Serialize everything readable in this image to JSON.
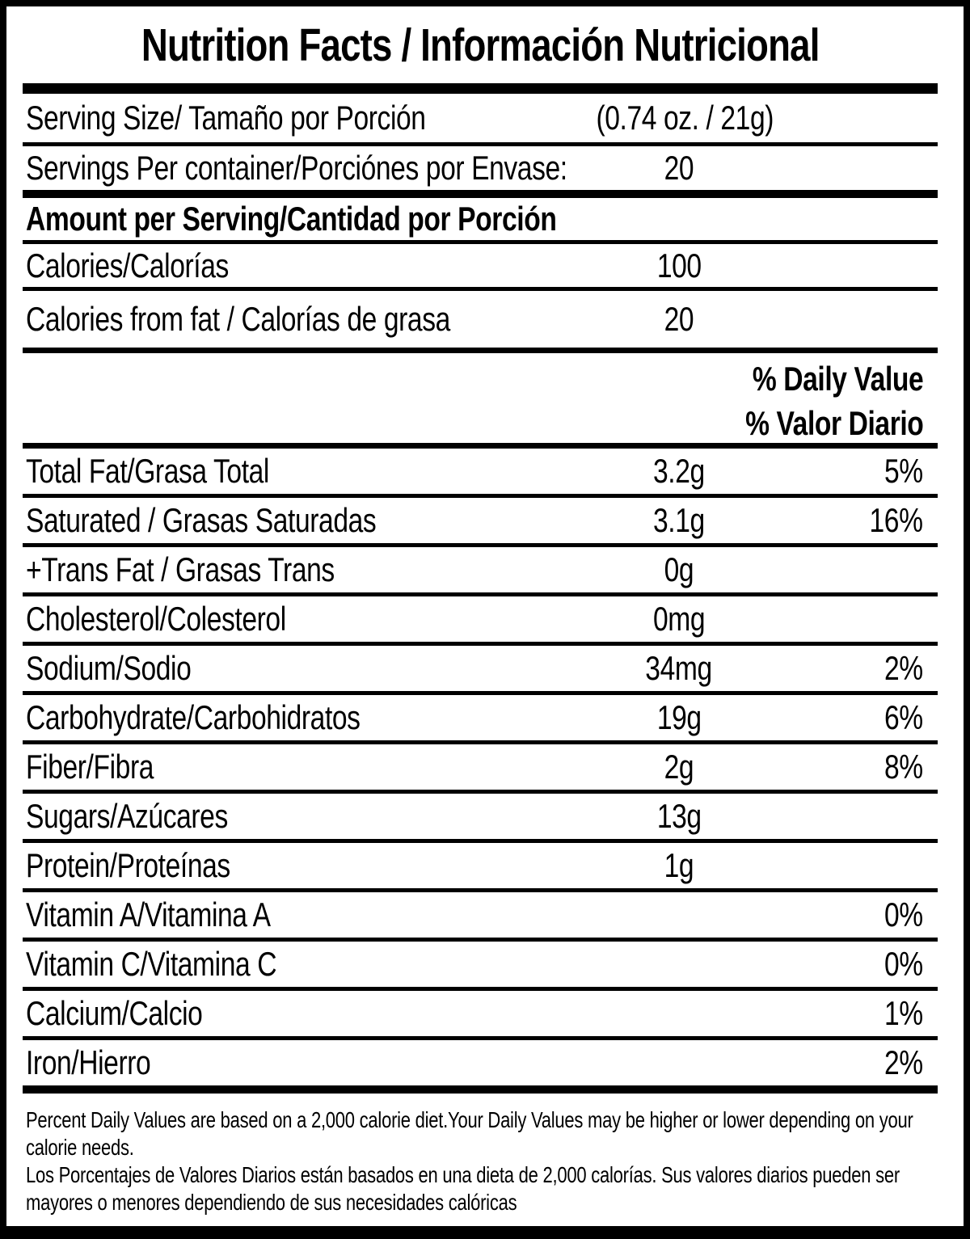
{
  "colors": {
    "foreground": "#000000",
    "background": "#ffffff"
  },
  "label": {
    "title": "Nutrition Facts / Información Nutricional",
    "serving_size": {
      "label": "Serving Size/ Tamaño por Porción",
      "value": "(0.74 oz. / 21g)"
    },
    "servings_per_container": {
      "label": "Servings Per container/Porciónes por Envase:",
      "value": "20"
    },
    "amount_per_serving": "Amount per Serving/Cantidad por Porción",
    "calories": {
      "label": "Calories/Calorías",
      "value": "100"
    },
    "calories_from_fat": {
      "label": "Calories from fat / Calorías de grasa",
      "value": "20"
    },
    "daily_value_header_en": "% Daily Value",
    "daily_value_header_es": "% Valor Diario",
    "nutrients": [
      {
        "label": "Total Fat/Grasa Total",
        "amount": "3.2g",
        "dv": "5%"
      },
      {
        "label": "Saturated / Grasas Saturadas",
        "amount": "3.1g",
        "dv": "16%"
      },
      {
        "label": "+Trans Fat / Grasas Trans",
        "amount": "0g",
        "dv": ""
      },
      {
        "label": "Cholesterol/Colesterol",
        "amount": "0mg",
        "dv": ""
      },
      {
        "label": "Sodium/Sodio",
        "amount": "34mg",
        "dv": "2%"
      },
      {
        "label": "Carbohydrate/Carbohidratos",
        "amount": "19g",
        "dv": "6%"
      },
      {
        "label": "Fiber/Fibra",
        "amount": "2g",
        "dv": "8%"
      },
      {
        "label": "Sugars/Azúcares",
        "amount": "13g",
        "dv": ""
      },
      {
        "label": "Protein/Proteínas",
        "amount": "1g",
        "dv": ""
      },
      {
        "label": "Vitamin A/Vitamina A",
        "amount": "",
        "dv": "0%"
      },
      {
        "label": "Vitamin C/Vitamina C",
        "amount": "",
        "dv": "0%"
      },
      {
        "label": "Calcium/Calcio",
        "amount": "",
        "dv": "1%"
      },
      {
        "label": "Iron/Hierro",
        "amount": "",
        "dv": "2%"
      }
    ],
    "footnote_en": "Percent Daily Values are based on a 2,000 calorie diet.Your Daily Values may be higher or lower depending on your calorie needs.",
    "footnote_es": "Los Porcentajes de Valores Diarios están basados en una dieta de 2,000 calorías. Sus valores diarios pueden ser mayores o menores dependiendo de sus necesidades calóricas"
  }
}
